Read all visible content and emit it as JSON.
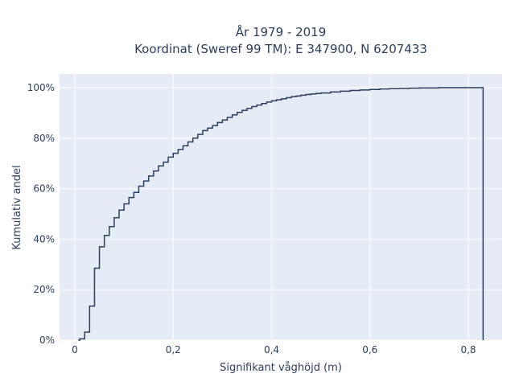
{
  "chart_data": {
    "type": "line",
    "subtype": "ecdf-step",
    "title": [
      "År 1979 - 2019",
      "Koordinat (Sweref 99 TM): E 347900, N 6207433"
    ],
    "xlabel": "Signifikant våghöjd (m)",
    "ylabel": "Kumulativ andel",
    "xlim": [
      -0.03,
      0.865
    ],
    "ylim": [
      0,
      1.05
    ],
    "x_ticks": [
      0,
      0.2,
      0.4,
      0.6,
      0.8
    ],
    "x_tick_labels": [
      "0",
      "0,2",
      "0,4",
      "0,6",
      "0,8"
    ],
    "y_ticks": [
      0,
      0.2,
      0.4,
      0.6,
      0.8,
      1.0
    ],
    "y_tick_labels": [
      "0%",
      "20%",
      "40%",
      "60%",
      "80%",
      "100%"
    ],
    "grid": true,
    "legend": "none",
    "line_color": "#2a3f5f",
    "plot_background": "#e5ecf6",
    "series": [
      {
        "x": [
          0.01,
          0.02,
          0.03,
          0.04,
          0.05,
          0.06,
          0.07,
          0.08,
          0.09,
          0.1,
          0.11,
          0.12,
          0.13,
          0.14,
          0.15,
          0.16,
          0.17,
          0.18,
          0.19,
          0.2,
          0.21,
          0.22,
          0.23,
          0.24,
          0.25,
          0.26,
          0.27,
          0.28,
          0.29,
          0.3,
          0.31,
          0.32,
          0.33,
          0.34,
          0.35,
          0.36,
          0.37,
          0.38,
          0.39,
          0.4,
          0.41,
          0.42,
          0.43,
          0.44,
          0.45,
          0.46,
          0.47,
          0.48,
          0.49,
          0.5,
          0.52,
          0.54,
          0.56,
          0.58,
          0.6,
          0.62,
          0.64,
          0.66,
          0.68,
          0.7,
          0.72,
          0.74,
          0.76,
          0.78,
          0.8,
          0.83
        ],
        "y": [
          0.005,
          0.032,
          0.135,
          0.285,
          0.37,
          0.415,
          0.45,
          0.485,
          0.515,
          0.54,
          0.565,
          0.585,
          0.61,
          0.63,
          0.65,
          0.67,
          0.69,
          0.705,
          0.725,
          0.74,
          0.755,
          0.77,
          0.785,
          0.8,
          0.815,
          0.83,
          0.84,
          0.85,
          0.862,
          0.872,
          0.882,
          0.892,
          0.902,
          0.91,
          0.918,
          0.925,
          0.931,
          0.937,
          0.943,
          0.948,
          0.952,
          0.956,
          0.96,
          0.964,
          0.967,
          0.97,
          0.973,
          0.975,
          0.977,
          0.979,
          0.983,
          0.986,
          0.989,
          0.991,
          0.993,
          0.995,
          0.996,
          0.997,
          0.998,
          0.999,
          0.999,
          1.0,
          1.0,
          1.0,
          1.0,
          1.0
        ]
      }
    ]
  }
}
